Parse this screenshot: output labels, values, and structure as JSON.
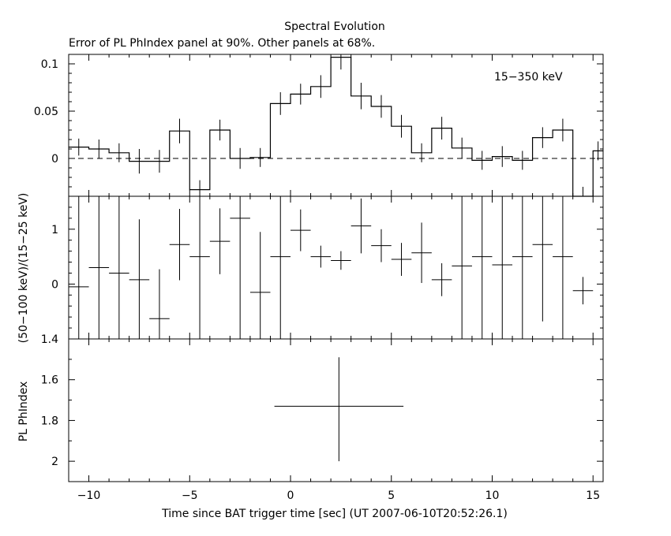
{
  "title": "Spectral Evolution",
  "subtitle": "Error of PL PhIndex panel at 90%. Other panels at 68%.",
  "xlabel": "Time since BAT trigger time [sec] (UT 2007-06-10T20:52:26.1)",
  "chart_data": [
    {
      "type": "line",
      "panel": "rate",
      "annotation": "15−350 keV",
      "xlim": [
        -11,
        15.5
      ],
      "ylim": [
        -0.04,
        0.11
      ],
      "yticks": [
        0,
        0.05,
        0.1
      ],
      "yticklabels": [
        "0",
        "0.05",
        "0.1"
      ],
      "reference_line": {
        "y": 0,
        "style": "dashed"
      },
      "bin_edges": [
        -11,
        -10,
        -9,
        -8,
        -7,
        -6,
        -5,
        -4,
        -3,
        -2,
        -1,
        0,
        1,
        2,
        3,
        4,
        5,
        6,
        7,
        8,
        9,
        10,
        11,
        12,
        13,
        14,
        15,
        15.5
      ],
      "values": [
        0.012,
        0.01,
        0.006,
        -0.003,
        -0.003,
        0.029,
        -0.033,
        0.03,
        0.0,
        0.001,
        0.058,
        0.068,
        0.076,
        0.107,
        0.066,
        0.055,
        0.034,
        0.006,
        0.032,
        0.011,
        -0.002,
        0.002,
        -0.002,
        0.022,
        0.03,
        -0.04,
        0.008
      ],
      "errors": [
        0.009,
        0.01,
        0.01,
        0.013,
        0.012,
        0.013,
        0.01,
        0.011,
        0.011,
        0.01,
        0.012,
        0.011,
        0.012,
        0.013,
        0.014,
        0.012,
        0.012,
        0.01,
        0.012,
        0.011,
        0.01,
        0.011,
        0.01,
        0.011,
        0.012,
        0.01,
        0.01
      ]
    },
    {
      "type": "scatter",
      "panel": "hardness ratio",
      "xlim": [
        -11,
        15.5
      ],
      "ylim": [
        -1,
        1.6
      ],
      "yticks": [
        0,
        1
      ],
      "yticklabels": [
        "0",
        "1"
      ],
      "points": [
        {
          "x": -10.5,
          "y": -0.05,
          "xerr": 0.5,
          "yerr": 3
        },
        {
          "x": -9.5,
          "y": 0.3,
          "xerr": 0.5,
          "yerr": 3
        },
        {
          "x": -8.5,
          "y": 0.2,
          "xerr": 0.5,
          "yerr": 3
        },
        {
          "x": -7.5,
          "y": 0.08,
          "xerr": 0.5,
          "yerr": 1.1
        },
        {
          "x": -6.5,
          "y": -0.63,
          "xerr": 0.5,
          "yerr": 0.9
        },
        {
          "x": -5.5,
          "y": 0.72,
          "xerr": 0.5,
          "yerr": 0.65
        },
        {
          "x": -4.5,
          "y": 0.5,
          "xerr": 0.5,
          "yerr": 3
        },
        {
          "x": -3.5,
          "y": 0.78,
          "xerr": 0.5,
          "yerr": 0.6
        },
        {
          "x": -2.5,
          "y": 1.2,
          "xerr": 0.5,
          "yerr": 3
        },
        {
          "x": -1.5,
          "y": -0.15,
          "xerr": 0.5,
          "yerr": 1.1
        },
        {
          "x": -0.5,
          "y": 0.5,
          "xerr": 0.5,
          "yerr": 3
        },
        {
          "x": 0.5,
          "y": 0.98,
          "xerr": 0.5,
          "yerr": 0.38
        },
        {
          "x": 1.5,
          "y": 0.5,
          "xerr": 0.5,
          "yerr": 0.2
        },
        {
          "x": 2.5,
          "y": 0.43,
          "xerr": 0.5,
          "yerr": 0.17
        },
        {
          "x": 3.5,
          "y": 1.06,
          "xerr": 0.5,
          "yerr": 0.5
        },
        {
          "x": 4.5,
          "y": 0.7,
          "xerr": 0.5,
          "yerr": 0.3
        },
        {
          "x": 5.5,
          "y": 0.45,
          "xerr": 0.5,
          "yerr": 0.3
        },
        {
          "x": 6.5,
          "y": 0.57,
          "xerr": 0.5,
          "yerr": 0.55
        },
        {
          "x": 7.5,
          "y": 0.08,
          "xerr": 0.5,
          "yerr": 0.3
        },
        {
          "x": 8.5,
          "y": 0.33,
          "xerr": 0.5,
          "yerr": 3
        },
        {
          "x": 9.5,
          "y": 0.5,
          "xerr": 0.5,
          "yerr": 3
        },
        {
          "x": 10.5,
          "y": 0.35,
          "xerr": 0.5,
          "yerr": 1.5
        },
        {
          "x": 11.5,
          "y": 0.5,
          "xerr": 0.5,
          "yerr": 3
        },
        {
          "x": 12.5,
          "y": 0.72,
          "xerr": 0.5,
          "yerr": 1.4
        },
        {
          "x": 13.5,
          "y": 0.5,
          "xerr": 0.5,
          "yerr": 3
        },
        {
          "x": 14.5,
          "y": -0.12,
          "xerr": 0.5,
          "yerr": 0.25
        }
      ]
    },
    {
      "type": "scatter",
      "panel": "photon index",
      "ylabel": "PL PhIndex",
      "ylim": [
        2.1,
        1.4
      ],
      "yticks": [
        1.4,
        1.6,
        1.8,
        2
      ],
      "yticklabels": [
        "1.4",
        "1.6",
        "1.8",
        "2"
      ],
      "points": [
        {
          "x": 2.4,
          "xlo": -0.8,
          "xhi": 5.6,
          "y": 1.73,
          "ylo": 1.49,
          "yhi": 2.0
        }
      ]
    }
  ],
  "ylabel_hr": "(50−100 keV)/(15−25 keV)",
  "xaxis": {
    "ticks": [
      -10,
      -5,
      0,
      5,
      10,
      15
    ],
    "ticklabels": [
      "−10",
      "−5",
      "0",
      "5",
      "10",
      "15"
    ]
  }
}
